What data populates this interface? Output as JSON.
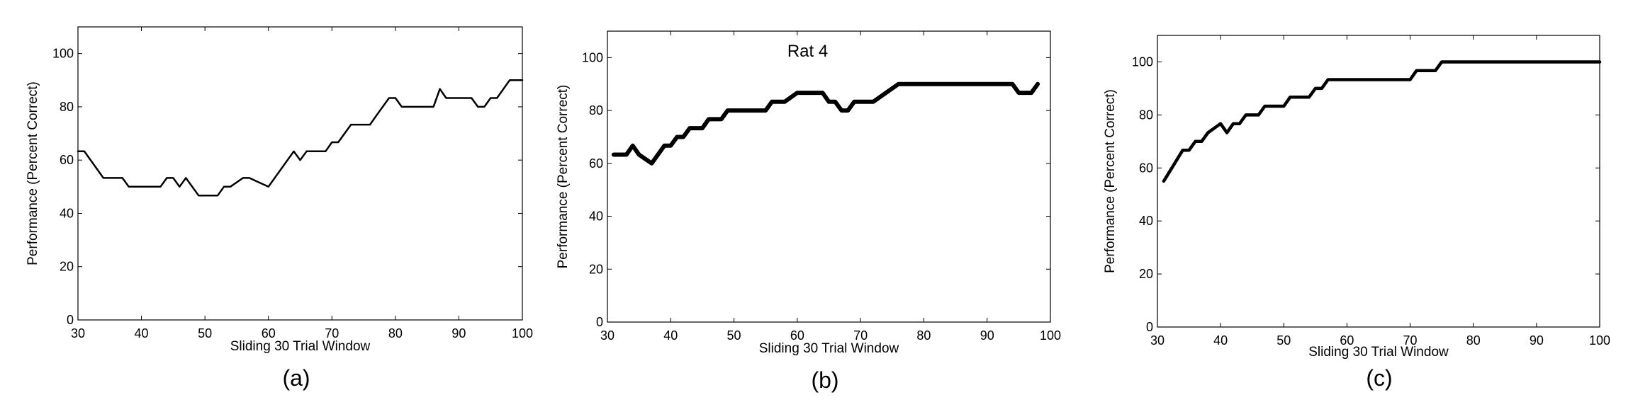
{
  "chart_data": [
    {
      "type": "line",
      "panel_label": "(a)",
      "title": "",
      "xlabel": "Sliding 30 Trial Window",
      "ylabel": "Performance (Percent Correct)",
      "xlim": [
        30,
        100
      ],
      "ylim": [
        0,
        110
      ],
      "xticks": [
        "30",
        "40",
        "50",
        "60",
        "70",
        "80",
        "90",
        "100"
      ],
      "yticks": [
        "0",
        "20",
        "40",
        "60",
        "80",
        "100"
      ],
      "grid": false,
      "series": [
        {
          "x": [
            30,
            31,
            34,
            37,
            38,
            43,
            44,
            45,
            46,
            47,
            48,
            49,
            50,
            52,
            53,
            54,
            56,
            57,
            60,
            64,
            65,
            66,
            69,
            70,
            71,
            73,
            76,
            77,
            79,
            80,
            81,
            86,
            87,
            88,
            92,
            93,
            94,
            95,
            96,
            98,
            100
          ],
          "y": [
            63.3,
            63.3,
            53.3,
            53.3,
            50,
            50,
            53.3,
            53.3,
            50,
            53.3,
            50,
            46.7,
            46.7,
            46.7,
            50,
            50,
            53.3,
            53.3,
            50,
            63.3,
            60,
            63.3,
            63.3,
            66.7,
            66.7,
            73.3,
            73.3,
            76.7,
            83.3,
            83.3,
            80,
            80,
            86.7,
            83.3,
            83.3,
            80,
            80,
            83.3,
            83.3,
            90,
            90
          ]
        }
      ]
    },
    {
      "type": "line",
      "panel_label": "(b)",
      "title": "Rat 4",
      "xlabel": "Sliding 30 Trial Window",
      "ylabel": "Performance (Percent Correct)",
      "xlim": [
        30,
        100
      ],
      "ylim": [
        0,
        110
      ],
      "xticks": [
        "30",
        "40",
        "50",
        "60",
        "70",
        "80",
        "90",
        "100"
      ],
      "yticks": [
        "0",
        "20",
        "40",
        "60",
        "80",
        "100"
      ],
      "grid": false,
      "series": [
        {
          "x": [
            31,
            33,
            34,
            35,
            37,
            39,
            40,
            41,
            42,
            43,
            45,
            46,
            47,
            48,
            49,
            53,
            55,
            56,
            57,
            58,
            60,
            61,
            64,
            65,
            66,
            67,
            68,
            69,
            71,
            72,
            76,
            77,
            94,
            95,
            96,
            97,
            98
          ],
          "y": [
            63.3,
            63.3,
            66.7,
            63.3,
            60,
            66.7,
            66.7,
            70,
            70,
            73.3,
            73.3,
            76.7,
            76.7,
            76.7,
            80,
            80,
            80,
            83.3,
            83.3,
            83.3,
            86.7,
            86.7,
            86.7,
            83.3,
            83.3,
            80,
            80,
            83.3,
            83.3,
            83.3,
            90,
            90,
            90,
            86.7,
            86.7,
            86.7,
            90
          ]
        }
      ]
    },
    {
      "type": "line",
      "panel_label": "(c)",
      "title": "",
      "xlabel": "Sliding 30 Trial Window",
      "ylabel": "Performance (Percent Correct)",
      "xlim": [
        30,
        100
      ],
      "ylim": [
        0,
        110
      ],
      "xticks": [
        "30",
        "40",
        "50",
        "60",
        "70",
        "80",
        "90",
        "100"
      ],
      "yticks": [
        "0",
        "20",
        "40",
        "60",
        "80",
        "100"
      ],
      "grid": false,
      "series": [
        {
          "x": [
            31,
            34,
            35,
            36,
            37,
            38,
            40,
            41,
            42,
            43,
            44,
            45,
            46,
            47,
            48,
            50,
            51,
            52,
            53,
            54,
            55,
            56,
            57,
            70,
            71,
            72,
            74,
            75,
            100
          ],
          "y": [
            55,
            66.7,
            66.7,
            70,
            70,
            73.3,
            76.7,
            73.3,
            76.7,
            76.7,
            80,
            80,
            80,
            83.3,
            83.3,
            83.3,
            86.7,
            86.7,
            86.7,
            86.7,
            90,
            90,
            93.3,
            93.3,
            96.7,
            96.7,
            96.7,
            100,
            100
          ]
        }
      ]
    }
  ]
}
